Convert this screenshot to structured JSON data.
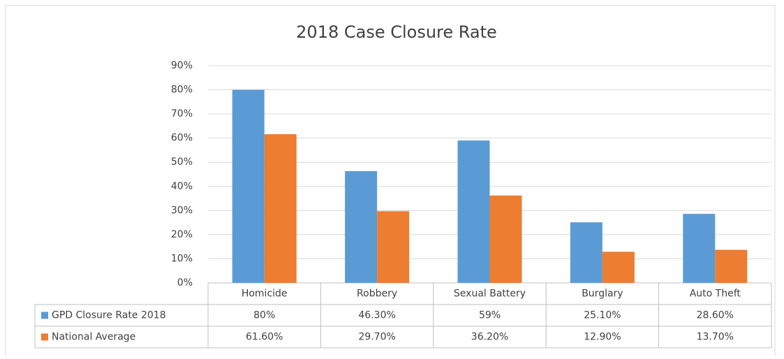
{
  "chart_data": {
    "type": "bar",
    "title": "2018 Case Closure Rate",
    "categories": [
      "Homicide",
      "Robbery",
      "Sexual Battery",
      "Burglary",
      "Auto Theft"
    ],
    "series": [
      {
        "name": "GPD Closure Rate 2018",
        "color": "#5b9bd5",
        "values": [
          80,
          46.3,
          59,
          25.1,
          28.6
        ],
        "value_labels": [
          "80%",
          "46.30%",
          "59%",
          "25.10%",
          "28.60%"
        ]
      },
      {
        "name": "National Average",
        "color": "#ed7d31",
        "values": [
          61.6,
          29.7,
          36.2,
          12.9,
          13.7
        ],
        "value_labels": [
          "61.60%",
          "29.70%",
          "36.20%",
          "12.90%",
          "13.70%"
        ]
      }
    ],
    "ylim": [
      0,
      90
    ],
    "yticks": [
      {
        "value": 0,
        "label": "0%"
      },
      {
        "value": 10,
        "label": "10%"
      },
      {
        "value": 20,
        "label": "20%"
      },
      {
        "value": 30,
        "label": "30%"
      },
      {
        "value": 40,
        "label": "40%"
      },
      {
        "value": 50,
        "label": "50%"
      },
      {
        "value": 60,
        "label": "60%"
      },
      {
        "value": 70,
        "label": "70%"
      },
      {
        "value": 80,
        "label": "80%"
      },
      {
        "value": 90,
        "label": "90%"
      }
    ],
    "grid": true
  }
}
